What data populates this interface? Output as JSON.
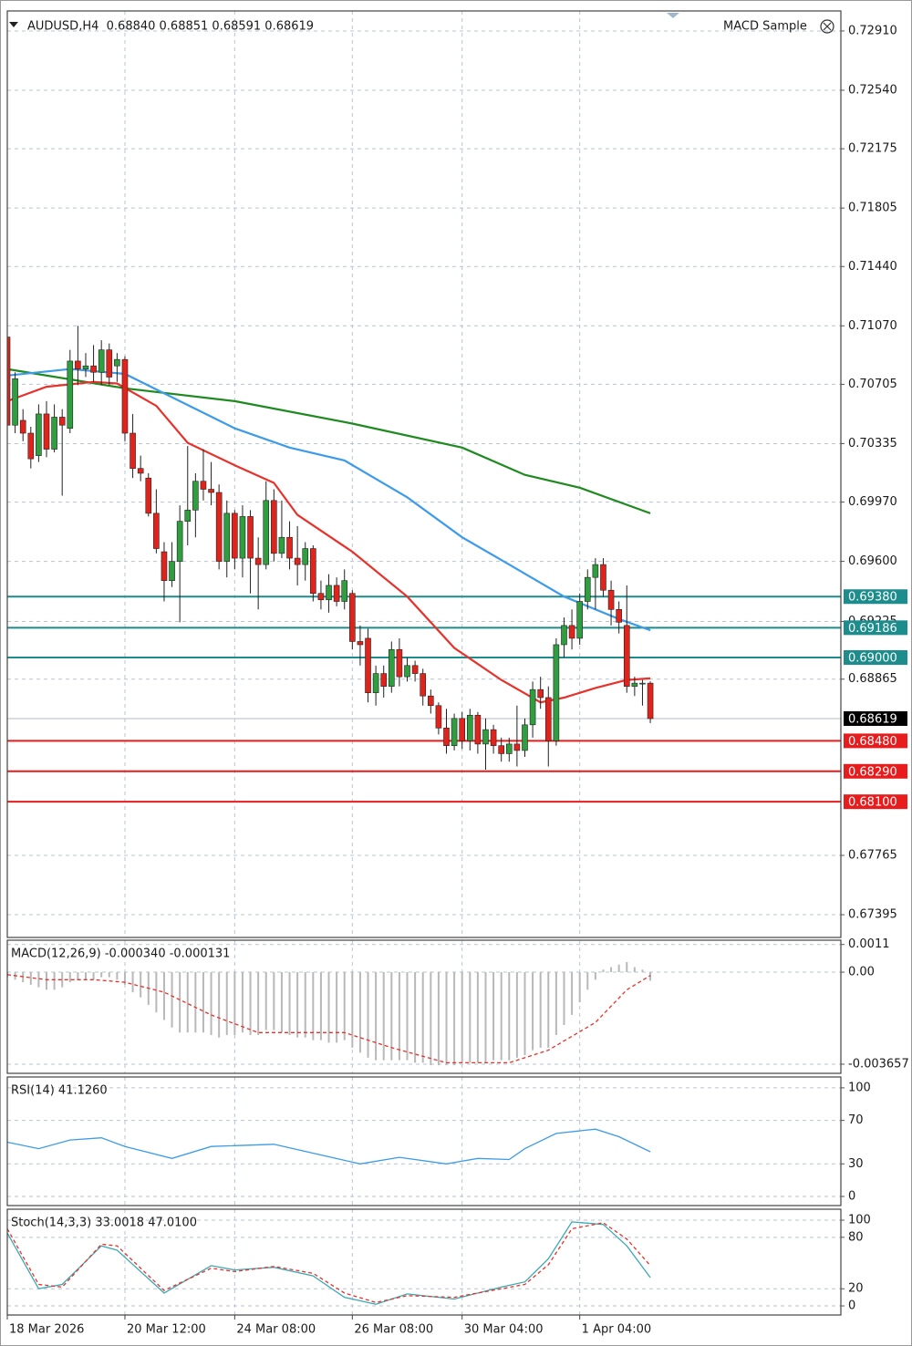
{
  "chart_data": [
    {
      "type": "candlestick",
      "title": "AUDUSD,H4  0.68840 0.68851 0.68591 0.68619",
      "expert": "MACD Sample",
      "xlim": [
        0,
        106.3
      ],
      "ylim": [
        0.67253,
        0.73035
      ],
      "yticks": [
        {
          "value": 0.7291,
          "label": "0.72910"
        },
        {
          "value": 0.7254,
          "label": "0.72540"
        },
        {
          "value": 0.72175,
          "label": "0.72175"
        },
        {
          "value": 0.71805,
          "label": "0.71805"
        },
        {
          "value": 0.7144,
          "label": "0.71440"
        },
        {
          "value": 0.7107,
          "label": "0.71070"
        },
        {
          "value": 0.70705,
          "label": "0.70705"
        },
        {
          "value": 0.70335,
          "label": "0.70335"
        },
        {
          "value": 0.6997,
          "label": "0.69970"
        },
        {
          "value": 0.696,
          "label": "0.69600"
        },
        {
          "value": 0.69225,
          "label": "0.69225"
        },
        {
          "value": 0.68865,
          "label": "0.68865"
        },
        {
          "value": 0.67765,
          "label": "0.67765"
        },
        {
          "value": 0.67395,
          "label": "0.67395"
        }
      ],
      "grid": true,
      "up_color": "#2e9e3e",
      "down_color": "#e0241c",
      "open": [
        0.71,
        0.7045,
        0.7048,
        0.704,
        0.7026,
        0.7052,
        0.703,
        0.705,
        0.7043,
        0.7085,
        0.708,
        0.7082,
        0.7078,
        0.7092,
        0.7082,
        0.7086,
        0.704,
        0.7018,
        0.7012,
        0.699,
        0.6966,
        0.6948,
        0.696,
        0.6985,
        0.6992,
        0.701,
        0.7005,
        0.7003,
        0.696,
        0.699,
        0.6962,
        0.6988,
        0.6962,
        0.6958,
        0.6998,
        0.6965,
        0.6975,
        0.6962,
        0.6958,
        0.6968,
        0.694,
        0.6936,
        0.6945,
        0.6935,
        0.694,
        0.691,
        0.6912,
        0.6878,
        0.689,
        0.6882,
        0.6905,
        0.6888,
        0.6895,
        0.689,
        0.6876,
        0.687,
        0.6856,
        0.6845,
        0.6862,
        0.6848,
        0.6864,
        0.6846,
        0.6855,
        0.6845,
        0.684,
        0.6846,
        0.6842,
        0.6858,
        0.688,
        0.6875,
        0.6848,
        0.6908,
        0.692,
        0.6912,
        0.6935,
        0.695,
        0.6958,
        0.6942,
        0.693,
        0.692,
        0.6882,
        0.6884,
        0.6884
      ],
      "high": [
        0.7102,
        0.7078,
        0.7055,
        0.7044,
        0.7058,
        0.706,
        0.7058,
        0.7055,
        0.7092,
        0.7107,
        0.709,
        0.7095,
        0.7098,
        0.7096,
        0.709,
        0.7088,
        0.7052,
        0.7026,
        0.7015,
        0.7005,
        0.6972,
        0.6972,
        0.6995,
        0.7032,
        0.7015,
        0.703,
        0.7022,
        0.7008,
        0.6998,
        0.6992,
        0.6995,
        0.6992,
        0.6975,
        0.701,
        0.7005,
        0.6998,
        0.6985,
        0.6982,
        0.6972,
        0.697,
        0.6948,
        0.6952,
        0.695,
        0.6955,
        0.6942,
        0.692,
        0.6918,
        0.6895,
        0.6895,
        0.691,
        0.6912,
        0.69,
        0.6898,
        0.6893,
        0.688,
        0.6872,
        0.6868,
        0.6865,
        0.6866,
        0.6868,
        0.6866,
        0.6862,
        0.6858,
        0.685,
        0.685,
        0.687,
        0.6862,
        0.6885,
        0.6888,
        0.6882,
        0.6912,
        0.6925,
        0.693,
        0.694,
        0.6955,
        0.6962,
        0.6962,
        0.6948,
        0.6935,
        0.6945,
        0.6888,
        0.6886,
        0.68851
      ],
      "low": [
        0.704,
        0.704,
        0.7035,
        0.7018,
        0.7022,
        0.7025,
        0.7028,
        0.7001,
        0.704,
        0.707,
        0.7075,
        0.7072,
        0.707,
        0.707,
        0.7072,
        0.7035,
        0.7012,
        0.701,
        0.6988,
        0.6965,
        0.6935,
        0.6944,
        0.6922,
        0.697,
        0.6975,
        0.6998,
        0.6995,
        0.6955,
        0.695,
        0.6955,
        0.695,
        0.694,
        0.693,
        0.6955,
        0.696,
        0.6962,
        0.6955,
        0.6945,
        0.6948,
        0.6935,
        0.693,
        0.6928,
        0.6932,
        0.693,
        0.6905,
        0.6895,
        0.6872,
        0.687,
        0.6875,
        0.6878,
        0.6882,
        0.6885,
        0.6885,
        0.687,
        0.6865,
        0.6852,
        0.684,
        0.6842,
        0.6843,
        0.6842,
        0.684,
        0.683,
        0.684,
        0.6835,
        0.6835,
        0.6832,
        0.6838,
        0.685,
        0.6868,
        0.6832,
        0.6845,
        0.69,
        0.6905,
        0.6908,
        0.693,
        0.693,
        0.6938,
        0.692,
        0.6915,
        0.6878,
        0.6876,
        0.687,
        0.68591
      ],
      "close": [
        0.7045,
        0.7074,
        0.704,
        0.7024,
        0.7052,
        0.703,
        0.705,
        0.7045,
        0.7085,
        0.708,
        0.7082,
        0.7078,
        0.7092,
        0.7075,
        0.7086,
        0.704,
        0.7018,
        0.7015,
        0.699,
        0.6968,
        0.6948,
        0.696,
        0.6985,
        0.6992,
        0.701,
        0.7005,
        0.7003,
        0.696,
        0.699,
        0.6962,
        0.6988,
        0.6962,
        0.6958,
        0.6998,
        0.6965,
        0.6975,
        0.6962,
        0.6958,
        0.6968,
        0.694,
        0.6936,
        0.6945,
        0.6935,
        0.6948,
        0.691,
        0.6908,
        0.6878,
        0.689,
        0.6882,
        0.6905,
        0.6888,
        0.6895,
        0.689,
        0.6876,
        0.687,
        0.6856,
        0.6845,
        0.6862,
        0.6848,
        0.6864,
        0.6846,
        0.6855,
        0.6845,
        0.684,
        0.6846,
        0.6842,
        0.6858,
        0.688,
        0.6875,
        0.6848,
        0.6908,
        0.692,
        0.6912,
        0.6935,
        0.695,
        0.6958,
        0.6942,
        0.693,
        0.6922,
        0.6882,
        0.6884,
        0.6884,
        0.68619
      ],
      "series": [
        {
          "color": "#1f8a1f",
          "x": [
            0,
            15,
            29,
            44,
            58,
            66,
            73,
            82
          ],
          "values": [
            0.708,
            0.7068,
            0.706,
            0.7046,
            0.7031,
            0.7014,
            0.7006,
            0.699
          ]
        },
        {
          "color": "#3d9be9",
          "x": [
            0,
            8,
            15,
            22,
            29,
            36,
            43,
            51,
            58,
            64,
            71,
            78,
            82
          ],
          "values": [
            0.7076,
            0.708,
            0.7077,
            0.706,
            0.7043,
            0.7031,
            0.7023,
            0.7,
            0.6975,
            0.6958,
            0.6938,
            0.6924,
            0.6917
          ]
        },
        {
          "color": "#e8312a",
          "x": [
            0,
            5,
            11,
            14,
            19,
            23,
            29,
            34,
            37,
            44,
            51,
            57,
            63,
            68,
            71,
            75,
            79,
            82
          ],
          "values": [
            0.706,
            0.7069,
            0.7072,
            0.7071,
            0.7057,
            0.7034,
            0.702,
            0.7009,
            0.6989,
            0.6966,
            0.6938,
            0.6906,
            0.6886,
            0.6872,
            0.6875,
            0.6881,
            0.6886,
            0.6887
          ]
        }
      ],
      "levels": [
        {
          "value": 0.6938,
          "label": "0.69380",
          "color": "#1c8c8c"
        },
        {
          "value": 0.69186,
          "label": "0.69186",
          "color": "#1c8c8c"
        },
        {
          "value": 0.69,
          "label": "0.69000",
          "color": "#1c8c8c"
        },
        {
          "value": 0.6848,
          "label": "0.68480",
          "color": "#e81c1c"
        },
        {
          "value": 0.6829,
          "label": "0.68290",
          "color": "#e81c1c"
        },
        {
          "value": 0.681,
          "label": "0.68100",
          "color": "#e81c1c"
        }
      ],
      "last_price": {
        "value": 0.68619,
        "label": "0.68619",
        "color": "#000000"
      }
    },
    {
      "type": "macd",
      "title": "MACD(12,26,9) -0.000340 -0.000131",
      "xlim": [
        0,
        106.3
      ],
      "ylim": [
        -0.00402,
        0.00127
      ],
      "yticks": [
        0.0011,
        {
          "value": 0,
          "label": "0.00"
        },
        -0.003657
      ],
      "histogram_color": "#b8b8b8",
      "values": [
        -0.0002,
        -0.0003,
        -0.0004,
        -0.0005,
        -0.0006,
        -0.0007,
        -0.0007,
        -0.0006,
        -0.0004,
        -0.0003,
        -0.0003,
        -0.0003,
        -0.0002,
        -0.0002,
        -0.0003,
        -0.0005,
        -0.0008,
        -0.001,
        -0.0013,
        -0.0016,
        -0.0019,
        -0.0022,
        -0.0024,
        -0.0024,
        -0.0024,
        -0.0024,
        -0.0025,
        -0.0026,
        -0.0025,
        -0.0025,
        -0.0024,
        -0.0025,
        -0.0025,
        -0.0023,
        -0.0023,
        -0.0024,
        -0.0025,
        -0.0026,
        -0.0026,
        -0.0027,
        -0.0027,
        -0.0028,
        -0.0028,
        -0.0027,
        -0.003,
        -0.0032,
        -0.0034,
        -0.0035,
        -0.0035,
        -0.0035,
        -0.0035,
        -0.0035,
        -0.0036,
        -0.0036,
        -0.0037,
        -0.0037,
        -0.0037,
        -0.0037,
        -0.0036,
        -0.0036,
        -0.0036,
        -0.0036,
        -0.0035,
        -0.0035,
        -0.0035,
        -0.0034,
        -0.0033,
        -0.0031,
        -0.003,
        -0.003,
        -0.0025,
        -0.0021,
        -0.0017,
        -0.0012,
        -0.0007,
        -0.0003,
        0.0001,
        0.0002,
        0.0003,
        0.0004,
        0.0002,
        0.0001,
        -0.00034
      ],
      "series": [
        {
          "color": "#e8312a",
          "dashed": true,
          "x": [
            0,
            5,
            11,
            15,
            20,
            26,
            32,
            43,
            49,
            56,
            64,
            69,
            75,
            79,
            82
          ],
          "values": [
            -0.0001,
            -0.0003,
            -0.0003,
            -0.0004,
            -0.0008,
            -0.0017,
            -0.0024,
            -0.0024,
            -0.003,
            -0.0036,
            -0.0036,
            -0.0031,
            -0.002,
            -0.0007,
            -0.000131
          ]
        }
      ]
    },
    {
      "type": "line",
      "title": "RSI(14) 41.1260",
      "xlim": [
        0,
        106.3
      ],
      "ylim": [
        -8.4,
        110
      ],
      "yticks": [
        100,
        70,
        30,
        0
      ],
      "series": [
        {
          "color": "#3d9be9",
          "x": [
            0,
            4,
            8,
            12,
            15,
            21,
            26,
            34,
            45,
            50,
            56,
            60,
            64,
            66,
            70,
            75,
            78,
            82
          ],
          "values": [
            50,
            44,
            52,
            54,
            46,
            35,
            46,
            48,
            30,
            36,
            30,
            35,
            34,
            44,
            58,
            62,
            55,
            41.126
          ]
        }
      ]
    },
    {
      "type": "line",
      "title": "Stoch(14,3,3) 33.0018 47.0100",
      "xlim": [
        0,
        106.3
      ],
      "ylim": [
        -10.6,
        112.8
      ],
      "yticks": [
        100,
        80,
        20,
        0
      ],
      "xticks": [
        {
          "value": 0,
          "label": "18 Mar 2026"
        },
        {
          "value": 15,
          "label": "20 Mar 12:00"
        },
        {
          "value": 29,
          "label": "24 Mar 08:00"
        },
        {
          "value": 44,
          "label": "26 Mar 08:00"
        },
        {
          "value": 58,
          "label": "30 Mar 04:00"
        },
        {
          "value": 73,
          "label": "1 Apr 04:00"
        }
      ],
      "series": [
        {
          "color": "#3aa9b3",
          "x": [
            0,
            4,
            7,
            12,
            14,
            20,
            26,
            29,
            34,
            39,
            43,
            47,
            51,
            57,
            63,
            66,
            69,
            72,
            76,
            79,
            82
          ],
          "values": [
            85,
            20,
            25,
            70,
            65,
            15,
            47,
            42,
            45,
            35,
            10,
            2,
            14,
            8,
            22,
            28,
            55,
            98,
            95,
            70,
            33.0018
          ]
        },
        {
          "color": "#e8312a",
          "dashed": true,
          "x": [
            0,
            4,
            7,
            12,
            14,
            20,
            26,
            29,
            34,
            39,
            43,
            47,
            51,
            57,
            63,
            66,
            69,
            72,
            76,
            79,
            82
          ],
          "values": [
            90,
            25,
            22,
            72,
            70,
            18,
            44,
            40,
            46,
            38,
            15,
            4,
            12,
            10,
            20,
            25,
            48,
            90,
            97,
            78,
            47.01
          ]
        }
      ]
    }
  ]
}
